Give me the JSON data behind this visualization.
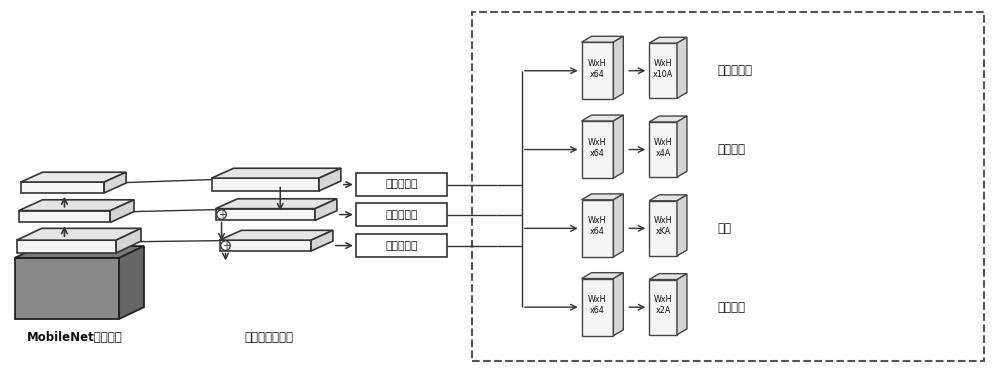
{
  "bg_color": "#ffffff",
  "mobilenet_label": "MobileNet骨干网络",
  "fpn_label": "特征金字塔网络",
  "head_labels": [
    "头部子网络",
    "头部子网络",
    "头部子网络"
  ],
  "output_labels": [
    "关键点回归",
    "边框回归",
    "分类",
    "视线回归"
  ],
  "feat64_labels": [
    "WxH\nx64",
    "WxH\nx64",
    "WxH\nx64",
    "WxH\nx64"
  ],
  "feat_out_labels": [
    "WxH\nx10A",
    "WxH\nx4A",
    "WxH\nxKA",
    "WxH\nx2A"
  ],
  "line_color": "#333333",
  "layer_face_color": "#f8f8f8",
  "layer_edge_color": "#444444",
  "image_layer_color": "#888888"
}
